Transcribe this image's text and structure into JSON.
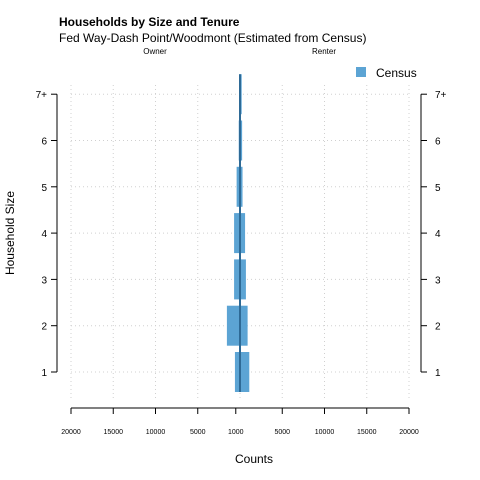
{
  "chart_data": {
    "type": "bar",
    "orientation": "horizontal-pyramid",
    "title": "Households by Size and Tenure",
    "subtitle": "Fed Way-Dash Point/Woodmont (Estimated from Census)",
    "left_label": "Owner",
    "right_label": "Renter",
    "xlabel": "Counts",
    "ylabel": "Household Size",
    "categories": [
      "1",
      "2",
      "3",
      "4",
      "5",
      "6",
      "7+"
    ],
    "series": [
      {
        "name": "Census",
        "color": "#5ca4d4",
        "owner": [
          600,
          1550,
          700,
          700,
          400,
          150,
          100
        ],
        "renter": [
          1100,
          900,
          700,
          600,
          300,
          250,
          200
        ]
      }
    ],
    "x_ticks": [
      "20000",
      "15000",
      "10000",
      "5000",
      "1000",
      "5000",
      "10000",
      "15000",
      "20000"
    ],
    "xlim": [
      -20000,
      20000
    ],
    "grid": true,
    "legend_position": "top-right"
  }
}
